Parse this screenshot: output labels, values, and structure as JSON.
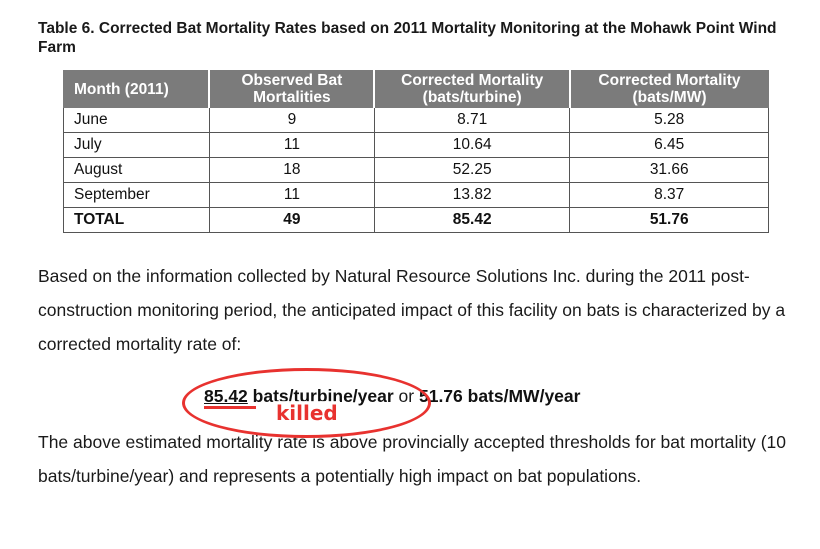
{
  "caption": "Table 6. Corrected Bat Mortality Rates based on 2011 Mortality Monitoring at the Mohawk Point Wind Farm",
  "table": {
    "headers": [
      "Month (2011)",
      "Observed Bat Mortalities",
      "Corrected Mortality (bats/turbine)",
      "Corrected Mortality (bats/MW)"
    ],
    "rows": [
      [
        "June",
        "9",
        "8.71",
        "5.28"
      ],
      [
        "July",
        "11",
        "10.64",
        "6.45"
      ],
      [
        "August",
        "18",
        "52.25",
        "31.66"
      ],
      [
        "September",
        "11",
        "13.82",
        "8.37"
      ]
    ],
    "total": [
      "TOTAL",
      "49",
      "85.42",
      "51.76"
    ]
  },
  "paragraph1": "Based on the information collected by Natural Resource Solutions Inc. during the 2011 post-construction monitoring period, the anticipated impact of this facility on bats is characterized by a corrected mortality rate of:",
  "rate": {
    "turbine_value": "85.42",
    "turbine_unit": " bats/turbine/year",
    "or": " or ",
    "mw": "51.76 bats/MW/year"
  },
  "annotation": {
    "text": "killed",
    "color": "#e8322f"
  },
  "paragraph2": "The above estimated mortality rate is above provincially accepted thresholds for bat mortality (10 bats/turbine/year) and represents a potentially high impact on bat populations."
}
